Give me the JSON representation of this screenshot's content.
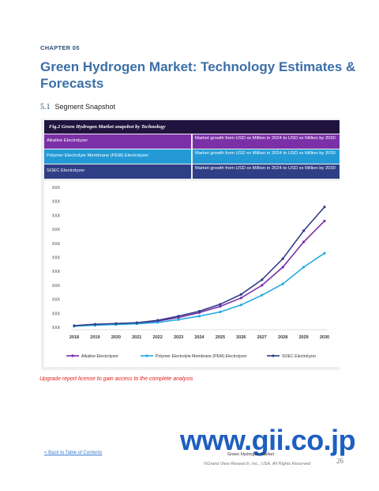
{
  "chapter_label": "CHAPTER 05",
  "title": "Green Hydrogen Market: Technology Estimates & Forecasts",
  "section": {
    "number": "5.1",
    "title": "Segment Snapshot"
  },
  "figure_title": "Fig.2 Green Hydrogen Market snapshot by Technology",
  "segments": [
    {
      "name": "Alkaline Electrolyzer",
      "description": "Market growth from USD xx Million in 2024 to USD xx Million by 2030",
      "color": "#7b30a8"
    },
    {
      "name": "Polymer Electrolyte Membrane (PEM) Electrolyzer",
      "description": "Market growth from USD xx Million in 2024 to USD xx Million by 2030",
      "color": "#239ad6"
    },
    {
      "name": "SOEC Electrolyzer",
      "description": "Market growth from USD xx Million in 2024 to USD xx Million by 2030",
      "color": "#2f3f86"
    }
  ],
  "chart_data": {
    "type": "line",
    "x": [
      "2018",
      "2019",
      "2020",
      "2021",
      "2022",
      "2023",
      "2024",
      "2025",
      "2026",
      "2027",
      "2028",
      "2029",
      "2030"
    ],
    "y_tick_labels": [
      "XXX",
      "XXX",
      "XXX",
      "XXX",
      "XXX",
      "XXX",
      "XXX",
      "XXX",
      "XXX",
      "XXX",
      "XXX"
    ],
    "ylim": [
      0,
      10
    ],
    "grid": false,
    "legend_position": "bottom",
    "series": [
      {
        "name": "Alkaline Electrolyzer",
        "color": "#7b30a8",
        "values": [
          0.1,
          0.2,
          0.25,
          0.3,
          0.45,
          0.7,
          1.05,
          1.5,
          2.1,
          3.0,
          4.3,
          6.1,
          7.6
        ]
      },
      {
        "name": "Polymer Electrolyte Membrane (PEM) Electrolyzer",
        "color": "#23a9e0",
        "values": [
          0.08,
          0.15,
          0.2,
          0.25,
          0.35,
          0.55,
          0.8,
          1.1,
          1.6,
          2.3,
          3.1,
          4.3,
          5.3
        ]
      },
      {
        "name": "SOEC Electrolyzer",
        "color": "#2f3f86",
        "values": [
          0.12,
          0.22,
          0.27,
          0.33,
          0.5,
          0.8,
          1.15,
          1.65,
          2.35,
          3.4,
          4.9,
          6.9,
          8.6
        ]
      }
    ]
  },
  "upgrade_text": "Upgrade report license to gain access to the complete analysis",
  "watermark": "www.gii.co.jp",
  "footer": {
    "back_link": "< Back to Table of Contents",
    "report_title": "Green Hydrogen Market",
    "copyright": "©Grand View Research, Inc., USA. All Rights Reserved",
    "page_number": "26"
  }
}
